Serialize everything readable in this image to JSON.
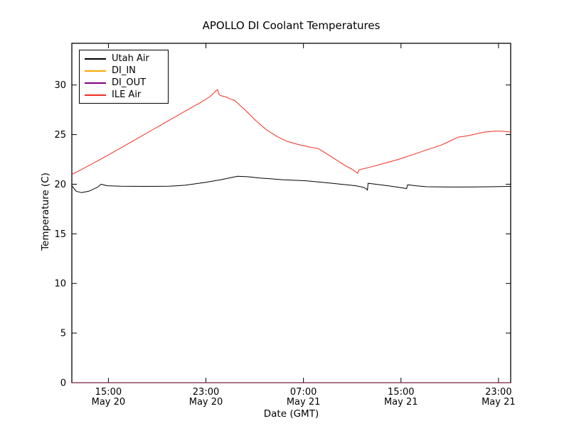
{
  "figure": {
    "background": "#ffffff",
    "frame_color": "#000000"
  },
  "chart_data": {
    "type": "line",
    "title": "APOLLO DI Coolant Temperatures",
    "xlabel": "Date (GMT)",
    "ylabel": "Temperature (C)",
    "x_unit": "hours since May 20 12:00 GMT",
    "xlim": [
      0,
      36
    ],
    "ylim": [
      0,
      34.2
    ],
    "grid": false,
    "legend_position": "upper left",
    "yticks": [
      0,
      5,
      10,
      15,
      20,
      25,
      30
    ],
    "xticks": [
      {
        "t": 3,
        "time": "15:00",
        "date": "May 20"
      },
      {
        "t": 11,
        "time": "23:00",
        "date": "May 20"
      },
      {
        "t": 19,
        "time": "07:00",
        "date": "May 21"
      },
      {
        "t": 27,
        "time": "15:00",
        "date": "May 21"
      },
      {
        "t": 35,
        "time": "23:00",
        "date": "May 21"
      }
    ],
    "series": [
      {
        "name": "Utah Air",
        "color": "#000000",
        "width": 1,
        "opacity": 1,
        "points": [
          [
            0,
            19.85
          ],
          [
            0.35,
            19.3
          ],
          [
            0.8,
            19.15
          ],
          [
            1.4,
            19.3
          ],
          [
            2.1,
            19.7
          ],
          [
            2.4,
            20.0
          ],
          [
            2.9,
            19.85
          ],
          [
            4,
            19.8
          ],
          [
            6,
            19.78
          ],
          [
            8,
            19.8
          ],
          [
            9.3,
            19.9
          ],
          [
            11,
            20.2
          ],
          [
            12.2,
            20.45
          ],
          [
            13,
            20.65
          ],
          [
            13.6,
            20.8
          ],
          [
            14.5,
            20.75
          ],
          [
            15.4,
            20.62
          ],
          [
            16.3,
            20.55
          ],
          [
            17.4,
            20.45
          ],
          [
            19.2,
            20.35
          ],
          [
            20.9,
            20.15
          ],
          [
            22.1,
            20.0
          ],
          [
            23.3,
            19.85
          ],
          [
            23.9,
            19.7
          ],
          [
            24.15,
            19.55
          ],
          [
            24.25,
            19.4
          ],
          [
            24.3,
            20.1
          ],
          [
            25.3,
            19.95
          ],
          [
            26.2,
            19.8
          ],
          [
            27.3,
            19.6
          ],
          [
            27.45,
            19.55
          ],
          [
            27.55,
            19.95
          ],
          [
            28.2,
            19.85
          ],
          [
            29.1,
            19.75
          ],
          [
            30.9,
            19.72
          ],
          [
            32.6,
            19.72
          ],
          [
            34.4,
            19.75
          ],
          [
            36,
            19.78
          ]
        ]
      },
      {
        "name": "DI_IN",
        "color": "#ffa500",
        "width": 1,
        "opacity": 1,
        "points": [
          [
            0,
            0
          ],
          [
            36,
            0
          ]
        ]
      },
      {
        "name": "DI_OUT",
        "color": "#800080",
        "width": 1,
        "opacity": 0.7,
        "points": [
          [
            0,
            0
          ],
          [
            36,
            0
          ]
        ]
      },
      {
        "name": "ILE Air",
        "color": "#f22c1e",
        "width": 1,
        "opacity": 1,
        "points": [
          [
            0,
            21.0
          ],
          [
            0.6,
            21.35
          ],
          [
            1.5,
            21.95
          ],
          [
            2.5,
            22.6
          ],
          [
            3.5,
            23.3
          ],
          [
            4.5,
            24.0
          ],
          [
            5.5,
            24.7
          ],
          [
            6.5,
            25.4
          ],
          [
            7.5,
            26.1
          ],
          [
            8.5,
            26.8
          ],
          [
            9.5,
            27.5
          ],
          [
            10.5,
            28.2
          ],
          [
            11.3,
            28.8
          ],
          [
            11.95,
            29.55
          ],
          [
            12.1,
            29.0
          ],
          [
            12.3,
            28.9
          ],
          [
            12.65,
            28.8
          ],
          [
            13.0,
            28.6
          ],
          [
            13.35,
            28.45
          ],
          [
            14.2,
            27.5
          ],
          [
            15.1,
            26.4
          ],
          [
            15.95,
            25.5
          ],
          [
            16.85,
            24.8
          ],
          [
            17.7,
            24.3
          ],
          [
            18.6,
            24.0
          ],
          [
            19.5,
            23.75
          ],
          [
            20.2,
            23.6
          ],
          [
            20.6,
            23.3
          ],
          [
            21.5,
            22.6
          ],
          [
            22.4,
            21.9
          ],
          [
            23.0,
            21.5
          ],
          [
            23.35,
            21.2
          ],
          [
            23.45,
            21.1
          ],
          [
            23.55,
            21.45
          ],
          [
            24.4,
            21.7
          ],
          [
            25.6,
            22.1
          ],
          [
            26.8,
            22.5
          ],
          [
            27.9,
            22.95
          ],
          [
            29.1,
            23.45
          ],
          [
            30.3,
            23.95
          ],
          [
            31.1,
            24.4
          ],
          [
            31.7,
            24.75
          ],
          [
            32.3,
            24.85
          ],
          [
            32.9,
            25.0
          ],
          [
            33.8,
            25.25
          ],
          [
            34.7,
            25.35
          ],
          [
            35.2,
            25.35
          ],
          [
            35.7,
            25.3
          ],
          [
            36,
            25.25
          ]
        ]
      }
    ]
  }
}
